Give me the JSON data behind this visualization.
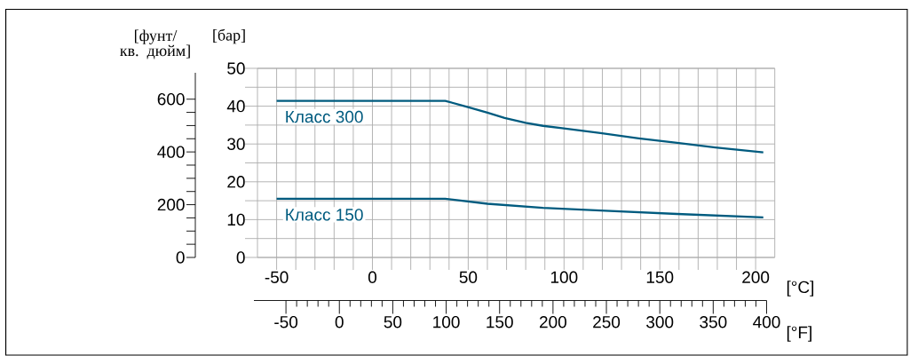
{
  "chart_data": {
    "type": "line",
    "ylabel": "[бар]",
    "y2label": "[фунт/ кв. дюйм]",
    "xlabel": "[°C]",
    "x2label": "[°F]",
    "xlim": [
      -60,
      210
    ],
    "xticks": [
      -50,
      {
        "value": -40,
        "label": null
      },
      {
        "value": -30,
        "label": null
      },
      {
        "value": -20,
        "label": null
      },
      {
        "value": -10,
        "label": null
      },
      0,
      {
        "value": 10,
        "label": null
      },
      {
        "value": 20,
        "label": null
      },
      {
        "value": 30,
        "label": null
      },
      {
        "value": 40,
        "label": null
      },
      50,
      {
        "value": 60,
        "label": null
      },
      {
        "value": 70,
        "label": null
      },
      {
        "value": 80,
        "label": null
      },
      {
        "value": 90,
        "label": null
      },
      100,
      {
        "value": 110,
        "label": null
      },
      {
        "value": 120,
        "label": null
      },
      {
        "value": 130,
        "label": null
      },
      {
        "value": 140,
        "label": null
      },
      150,
      {
        "value": 160,
        "label": null
      },
      {
        "value": 170,
        "label": null
      },
      {
        "value": 180,
        "label": null
      },
      {
        "value": 190,
        "label": null
      },
      200
    ],
    "ylim": [
      0,
      50
    ],
    "yticks": [
      0,
      {
        "value": 5,
        "label": null
      },
      10,
      {
        "value": 15,
        "label": null
      },
      20,
      {
        "value": 25,
        "label": null
      },
      30,
      {
        "value": 35,
        "label": null
      },
      40,
      {
        "value": 45,
        "label": null
      },
      50
    ],
    "y2lim": [
      0,
      700
    ],
    "y2ticks": [
      0,
      200,
      400,
      600
    ],
    "x2lim": [
      -80,
      400
    ],
    "x2ticks": [
      -50,
      0,
      50,
      100,
      150,
      200,
      250,
      300,
      350,
      400
    ],
    "grid": true,
    "marker": "none",
    "line_style": "solid",
    "series": [
      {
        "name": "Класс 300",
        "color": "#005b7f",
        "x": [
          -50,
          38,
          49,
          60,
          69,
          80,
          89,
          99,
          119,
          139,
          159,
          179,
          204
        ],
        "values": [
          41.4,
          41.4,
          39.9,
          38.3,
          36.9,
          35.6,
          34.8,
          34.2,
          32.9,
          31.5,
          30.3,
          29.1,
          27.8
        ]
      },
      {
        "name": "Класс 150",
        "color": "#005b7f",
        "x": [
          -50,
          38,
          60,
          89,
          119,
          159,
          204
        ],
        "values": [
          15.5,
          15.5,
          14.2,
          13.1,
          12.4,
          11.5,
          10.6
        ]
      }
    ]
  }
}
